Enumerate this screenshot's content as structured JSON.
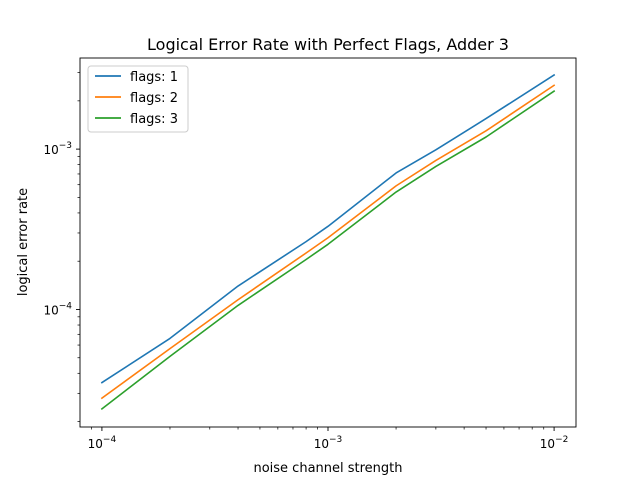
{
  "chart_data": {
    "type": "line",
    "title": "Logical Error Rate with Perfect Flags, Adder 3",
    "xlabel": "noise channel strength",
    "ylabel": "logical error rate",
    "xscale": "log",
    "yscale": "log",
    "xlim": [
      8e-05,
      0.0125
    ],
    "ylim": [
      1.85e-05,
      0.0037
    ],
    "x_ticks": [
      {
        "value": 0.0001,
        "base": "10",
        "exp": "−4"
      },
      {
        "value": 0.001,
        "base": "10",
        "exp": "−3"
      },
      {
        "value": 0.01,
        "base": "10",
        "exp": "−2"
      }
    ],
    "y_ticks": [
      {
        "value": 0.0001,
        "base": "10",
        "exp": "−4"
      },
      {
        "value": 0.001,
        "base": "10",
        "exp": "−3"
      }
    ],
    "grid": false,
    "legend_position": "top-left",
    "x": [
      0.0001,
      0.0002,
      0.0004,
      0.0008,
      0.001,
      0.002,
      0.003,
      0.005,
      0.01
    ],
    "series": [
      {
        "name": "flags: 1",
        "color": "#1f77b4",
        "values": [
          3.5e-05,
          6.6e-05,
          0.00014,
          0.000265,
          0.00033,
          0.00071,
          0.00099,
          0.00155,
          0.0029
        ]
      },
      {
        "name": "flags: 2",
        "color": "#ff7f0e",
        "values": [
          2.8e-05,
          5.7e-05,
          0.000115,
          0.000225,
          0.00028,
          0.00059,
          0.00085,
          0.0013,
          0.0025
        ]
      },
      {
        "name": "flags: 3",
        "color": "#2ca02c",
        "values": [
          2.4e-05,
          5.1e-05,
          0.000106,
          0.000205,
          0.000255,
          0.00054,
          0.00078,
          0.00119,
          0.0023
        ]
      }
    ]
  }
}
